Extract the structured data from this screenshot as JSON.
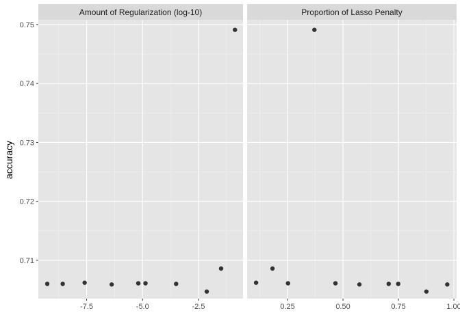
{
  "chart_data": {
    "type": "scatter",
    "ylabel": "accuracy",
    "xlabel": "",
    "ylim": [
      0.7035,
      0.7508
    ],
    "yticks": [
      0.71,
      0.72,
      0.73,
      0.74,
      0.75
    ],
    "ytick_labels": [
      "0.71",
      "0.72",
      "0.73",
      "0.74",
      "0.75"
    ],
    "grid": true,
    "point_color": "#333333",
    "panel_background": "#e5e5e5",
    "strip_background": "#d9d9d9",
    "panels": [
      {
        "title": "Amount of Regularization (log-10)",
        "xlim": [
          -9.66,
          -0.51
        ],
        "xticks": [
          -7.5,
          -5.0,
          -2.5
        ],
        "xtick_labels": [
          "-7.5",
          "-5.0",
          "-2.5"
        ],
        "points": [
          {
            "x": -9.26,
            "y": 0.706
          },
          {
            "x": -8.57,
            "y": 0.706
          },
          {
            "x": -7.59,
            "y": 0.7062
          },
          {
            "x": -6.38,
            "y": 0.7059
          },
          {
            "x": -5.19,
            "y": 0.7061
          },
          {
            "x": -4.87,
            "y": 0.7061
          },
          {
            "x": -3.5,
            "y": 0.706
          },
          {
            "x": -2.13,
            "y": 0.7047
          },
          {
            "x": -1.49,
            "y": 0.7086
          },
          {
            "x": -0.87,
            "y": 0.7491
          }
        ]
      },
      {
        "title": "Proportion of Lasso Penalty",
        "xlim": [
          0.0676,
          1.0121
        ],
        "xticks": [
          0.25,
          0.5,
          0.75,
          1.0
        ],
        "xtick_labels": [
          "0.25",
          "0.50",
          "0.75",
          "1.00"
        ],
        "points": [
          {
            "x": 0.108,
            "y": 0.7062
          },
          {
            "x": 0.182,
            "y": 0.7086
          },
          {
            "x": 0.252,
            "y": 0.7061
          },
          {
            "x": 0.371,
            "y": 0.7491
          },
          {
            "x": 0.466,
            "y": 0.7061
          },
          {
            "x": 0.574,
            "y": 0.7059
          },
          {
            "x": 0.706,
            "y": 0.706
          },
          {
            "x": 0.749,
            "y": 0.706
          },
          {
            "x": 0.876,
            "y": 0.7047
          },
          {
            "x": 0.97,
            "y": 0.7059
          }
        ]
      }
    ]
  }
}
